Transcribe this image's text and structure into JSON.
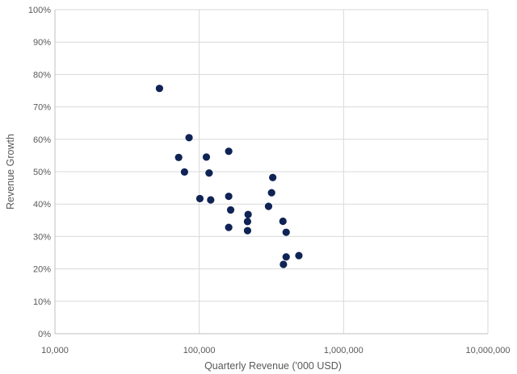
{
  "chart_data": {
    "type": "scatter",
    "title": "",
    "xlabel": "Quarterly Revenue ('000 USD)",
    "ylabel": "Revenue Growth",
    "x_scale": "log",
    "xlim": [
      10000,
      10000000
    ],
    "ylim": [
      0,
      1
    ],
    "x_ticks": [
      10000,
      100000,
      1000000,
      10000000
    ],
    "x_tick_labels": [
      "10,000",
      "100,000",
      "1,000,000",
      "10,000,000"
    ],
    "y_ticks": [
      0,
      0.1,
      0.2,
      0.3,
      0.4,
      0.5,
      0.6,
      0.7,
      0.8,
      0.9,
      1.0
    ],
    "y_tick_labels": [
      "0%",
      "10%",
      "20%",
      "30%",
      "40%",
      "50%",
      "60%",
      "70%",
      "80%",
      "90%",
      "100%"
    ],
    "grid": true,
    "legend": "none",
    "marker_color": "#0f2355",
    "grid_color": "#d9d9d9",
    "axis_color": "#bfbfbf",
    "points": [
      {
        "x": 53000,
        "y": 0.757
      },
      {
        "x": 85000,
        "y": 0.605
      },
      {
        "x": 72000,
        "y": 0.544
      },
      {
        "x": 79000,
        "y": 0.499
      },
      {
        "x": 112000,
        "y": 0.545
      },
      {
        "x": 117000,
        "y": 0.496
      },
      {
        "x": 101000,
        "y": 0.417
      },
      {
        "x": 120000,
        "y": 0.413
      },
      {
        "x": 160000,
        "y": 0.563
      },
      {
        "x": 160000,
        "y": 0.424
      },
      {
        "x": 165000,
        "y": 0.382
      },
      {
        "x": 160000,
        "y": 0.328
      },
      {
        "x": 218000,
        "y": 0.368
      },
      {
        "x": 216000,
        "y": 0.346
      },
      {
        "x": 216000,
        "y": 0.318
      },
      {
        "x": 323000,
        "y": 0.482
      },
      {
        "x": 317000,
        "y": 0.435
      },
      {
        "x": 302000,
        "y": 0.393
      },
      {
        "x": 380000,
        "y": 0.347
      },
      {
        "x": 400000,
        "y": 0.313
      },
      {
        "x": 400000,
        "y": 0.237
      },
      {
        "x": 490000,
        "y": 0.241
      },
      {
        "x": 383000,
        "y": 0.214
      }
    ]
  }
}
